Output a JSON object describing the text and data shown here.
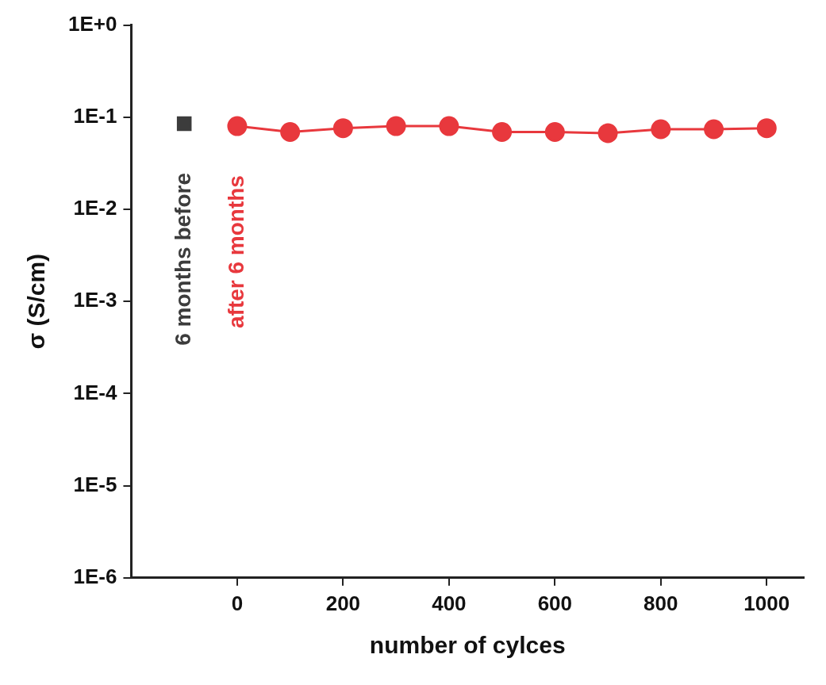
{
  "chart_data": {
    "type": "scatter",
    "xlabel": "number of cylces",
    "ylabel": "σ (S/cm)",
    "log": "y",
    "grid": false,
    "legend": false,
    "xlim": [
      -200,
      1070
    ],
    "xticks": [
      0,
      200,
      400,
      600,
      800,
      1000
    ],
    "ylim": [
      1e-06,
      1
    ],
    "yticks": [
      {
        "value": 1,
        "label": "1E+0"
      },
      {
        "value": 0.1,
        "label": "1E-1"
      },
      {
        "value": 0.01,
        "label": "1E-2"
      },
      {
        "value": 0.001,
        "label": "1E-3"
      },
      {
        "value": 0.0001,
        "label": "1E-4"
      },
      {
        "value": 1e-05,
        "label": "1E-5"
      },
      {
        "value": 1e-06,
        "label": "1E-6"
      }
    ],
    "series": [
      {
        "color": "#3c3c3c",
        "marker": "square",
        "x": [
          -100
        ],
        "values": [
          0.085
        ]
      },
      {
        "type": "line",
        "color": "#e8383d",
        "marker": "circle",
        "x": [
          0,
          100,
          200,
          300,
          400,
          500,
          600,
          700,
          800,
          900,
          1000
        ],
        "values": [
          0.08,
          0.069,
          0.076,
          0.08,
          0.08,
          0.069,
          0.069,
          0.067,
          0.074,
          0.074,
          0.076
        ]
      }
    ],
    "annotations": [
      "6 months before",
      "after 6 months"
    ]
  }
}
